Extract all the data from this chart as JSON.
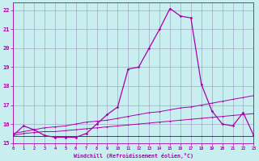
{
  "xlabel": "Windchill (Refroidissement éolien,°C)",
  "bg_color": "#c8eef0",
  "line_color": "#aa00aa",
  "grid_color": "#9999bb",
  "xlim": [
    0,
    23
  ],
  "ylim": [
    15,
    22.4
  ],
  "yticks": [
    15,
    16,
    17,
    18,
    19,
    20,
    21,
    22
  ],
  "xticks": [
    0,
    1,
    2,
    3,
    4,
    5,
    6,
    7,
    8,
    9,
    10,
    11,
    12,
    13,
    14,
    15,
    16,
    17,
    18,
    19,
    20,
    21,
    22,
    23
  ],
  "s_main_x": [
    0,
    1,
    2,
    3,
    4,
    5,
    6,
    7,
    8,
    9,
    10,
    11,
    12,
    13,
    14,
    15,
    16,
    17,
    18,
    19,
    20,
    21,
    22,
    23
  ],
  "s_main_y": [
    15.4,
    15.9,
    15.7,
    15.4,
    15.3,
    15.3,
    15.3,
    15.5,
    16.0,
    16.5,
    16.9,
    18.9,
    19.0,
    20.0,
    21.0,
    22.1,
    21.7,
    21.6,
    18.1,
    16.7,
    16.0,
    15.9,
    16.6,
    15.4
  ],
  "s_line1_x": [
    0,
    1,
    2,
    3,
    4,
    5,
    6,
    7,
    8,
    9,
    10,
    11,
    12,
    13,
    14,
    15,
    16,
    17,
    18,
    19,
    20,
    21,
    22,
    23
  ],
  "s_line1_y": [
    15.5,
    15.6,
    15.7,
    15.8,
    15.85,
    15.9,
    16.0,
    16.1,
    16.15,
    16.2,
    16.3,
    16.4,
    16.5,
    16.6,
    16.65,
    16.75,
    16.85,
    16.9,
    17.0,
    17.1,
    17.2,
    17.3,
    17.4,
    17.5
  ],
  "s_line2_x": [
    0,
    1,
    2,
    3,
    4,
    5,
    6,
    7,
    8,
    9,
    10,
    11,
    12,
    13,
    14,
    15,
    16,
    17,
    18,
    19,
    20,
    21,
    22,
    23
  ],
  "s_line2_y": [
    15.4,
    15.5,
    15.55,
    15.6,
    15.6,
    15.65,
    15.7,
    15.75,
    15.8,
    15.85,
    15.9,
    15.95,
    16.0,
    16.05,
    16.1,
    16.15,
    16.2,
    16.25,
    16.3,
    16.35,
    16.4,
    16.45,
    16.5,
    16.55
  ],
  "s_flat_x": [
    0,
    1,
    2,
    3,
    4,
    5,
    6,
    7,
    8,
    9,
    10,
    11,
    12,
    13,
    14,
    15,
    16,
    17,
    18,
    19,
    20,
    21,
    22,
    23
  ],
  "s_flat_y": [
    15.35,
    15.35,
    15.35,
    15.35,
    15.35,
    15.35,
    15.35,
    15.35,
    15.35,
    15.35,
    15.35,
    15.35,
    15.35,
    15.35,
    15.35,
    15.35,
    15.35,
    15.35,
    15.35,
    15.35,
    15.35,
    15.35,
    15.35,
    15.35
  ]
}
